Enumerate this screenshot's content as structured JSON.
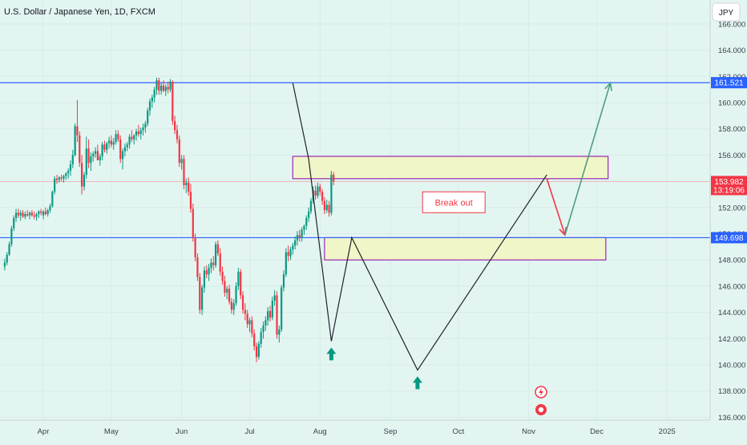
{
  "header": {
    "title": "U.S. Dollar / Japanese Yen, 1D, FXCM"
  },
  "currency_button": {
    "label": "JPY"
  },
  "chart_data": {
    "type": "candlestick",
    "title": "U.S. Dollar / Japanese Yen, 1D, FXCM",
    "y_ticks": [
      "166.000",
      "164.000",
      "162.000",
      "160.000",
      "158.000",
      "156.000",
      "154.000",
      "152.000",
      "150.000",
      "148.000",
      "146.000",
      "144.000",
      "142.000",
      "140.000",
      "138.000",
      "136.000"
    ],
    "ylim": [
      135.3,
      167.3
    ],
    "x_ticks": [
      {
        "label": "Apr",
        "day": 0
      },
      {
        "label": "May",
        "day": 30
      },
      {
        "label": "Jun",
        "day": 61
      },
      {
        "label": "Jul",
        "day": 91
      },
      {
        "label": "Aug",
        "day": 122
      },
      {
        "label": "Sep",
        "day": 153
      },
      {
        "label": "Oct",
        "day": 183
      },
      {
        "label": "Nov",
        "day": 214
      },
      {
        "label": "Dec",
        "day": 244
      },
      {
        "label": "2025",
        "day": 275
      }
    ],
    "price_tags": [
      {
        "label": "161.521",
        "value": 161.521,
        "color": "#2962ff"
      },
      {
        "label": "153.982",
        "sublabel": "13:19:06",
        "value": 153.982,
        "color": "#f23645"
      },
      {
        "label": "149.698",
        "value": 149.698,
        "color": "#2962ff"
      }
    ],
    "levels": [
      {
        "value": 161.521,
        "color": "#2962ff"
      },
      {
        "value": 149.698,
        "color": "#2962ff"
      },
      {
        "value": 153.982,
        "color": "#f4a3a8"
      }
    ],
    "zones": [
      {
        "x_start": 110,
        "x_end": 249,
        "y_low": 154.2,
        "y_high": 155.9
      },
      {
        "x_start": 124,
        "x_end": 248,
        "y_low": 148.0,
        "y_high": 149.7
      }
    ],
    "pattern_line": [
      [
        110,
        161.5
      ],
      [
        117,
        155.7
      ],
      [
        127,
        141.8
      ],
      [
        136,
        149.7
      ],
      [
        165,
        139.6
      ],
      [
        222,
        154.5
      ]
    ],
    "projection_red": [
      [
        222,
        154.2
      ],
      [
        230,
        149.9
      ]
    ],
    "projection_green": [
      [
        230,
        149.9
      ],
      [
        250,
        161.5
      ]
    ],
    "annotation": {
      "text": "Break out",
      "day": 181,
      "value": 152.4
    },
    "up_arrows": [
      {
        "day": 127,
        "value": 141.2
      },
      {
        "day": 165,
        "value": 139.0
      }
    ],
    "candles_ohlc": [
      [
        -17,
        147.5,
        148.1,
        147.2,
        147.8
      ],
      [
        -16,
        147.8,
        148.6,
        147.6,
        148.4
      ],
      [
        -15,
        148.4,
        149.4,
        148.3,
        149.2
      ],
      [
        -14,
        149.2,
        150.6,
        149.0,
        150.4
      ],
      [
        -13,
        150.4,
        151.4,
        150.2,
        151.2
      ],
      [
        -12,
        151.2,
        151.9,
        150.9,
        151.6
      ],
      [
        -11,
        151.6,
        151.9,
        151.2,
        151.4
      ],
      [
        -10,
        151.4,
        151.8,
        151.0,
        151.6
      ],
      [
        -9,
        151.6,
        151.8,
        151.2,
        151.3
      ],
      [
        -8,
        151.3,
        151.7,
        151.1,
        151.5
      ],
      [
        -7,
        151.5,
        151.8,
        151.3,
        151.4
      ],
      [
        -6,
        151.4,
        151.7,
        151.1,
        151.6
      ],
      [
        -5,
        151.6,
        151.8,
        151.3,
        151.4
      ],
      [
        -4,
        151.4,
        151.7,
        151.1,
        151.3
      ],
      [
        -3,
        151.3,
        151.6,
        151.0,
        151.5
      ],
      [
        -2,
        151.5,
        151.8,
        151.2,
        151.7
      ],
      [
        -1,
        151.7,
        151.9,
        151.4,
        151.6
      ],
      [
        0,
        151.4,
        151.8,
        151.1,
        151.7
      ],
      [
        1,
        151.7,
        152.0,
        151.4,
        151.5
      ],
      [
        2,
        151.5,
        151.9,
        151.3,
        151.8
      ],
      [
        3,
        151.8,
        152.3,
        151.6,
        152.1
      ],
      [
        4,
        152.1,
        153.3,
        152.0,
        153.2
      ],
      [
        5,
        153.2,
        154.4,
        153.0,
        154.2
      ],
      [
        6,
        154.2,
        154.5,
        153.8,
        154.1
      ],
      [
        7,
        154.1,
        154.4,
        153.9,
        154.3
      ],
      [
        8,
        154.3,
        154.5,
        154.0,
        154.2
      ],
      [
        9,
        154.2,
        154.5,
        153.9,
        154.4
      ],
      [
        10,
        154.4,
        154.7,
        154.1,
        154.6
      ],
      [
        11,
        154.6,
        155.0,
        154.2,
        154.8
      ],
      [
        12,
        154.8,
        155.6,
        154.4,
        155.3
      ],
      [
        13,
        155.3,
        156.4,
        155.0,
        156.0
      ],
      [
        14,
        156.0,
        158.4,
        155.9,
        158.2
      ],
      [
        15,
        158.2,
        160.2,
        157.0,
        157.5
      ],
      [
        16,
        157.5,
        157.8,
        155.1,
        155.4
      ],
      [
        17,
        155.4,
        156.0,
        153.0,
        153.6
      ],
      [
        18,
        153.6,
        154.7,
        153.3,
        154.5
      ],
      [
        19,
        154.5,
        157.4,
        154.2,
        156.5
      ],
      [
        20,
        156.5,
        157.2,
        155.0,
        155.4
      ],
      [
        21,
        155.4,
        156.2,
        154.8,
        155.9
      ],
      [
        22,
        155.9,
        156.3,
        155.5,
        156.1
      ],
      [
        23,
        156.1,
        156.6,
        155.8,
        156.3
      ],
      [
        24,
        156.3,
        156.8,
        155.9,
        155.6
      ],
      [
        25,
        155.6,
        156.1,
        155.2,
        155.9
      ],
      [
        26,
        155.9,
        157.0,
        155.6,
        156.8
      ],
      [
        27,
        156.8,
        157.1,
        156.2,
        156.4
      ],
      [
        28,
        156.4,
        157.0,
        156.1,
        156.9
      ],
      [
        29,
        156.9,
        157.4,
        156.5,
        157.1
      ],
      [
        30,
        157.1,
        157.5,
        156.6,
        156.8
      ],
      [
        31,
        156.8,
        157.3,
        156.4,
        157.0
      ],
      [
        32,
        157.0,
        157.9,
        156.8,
        157.6
      ],
      [
        33,
        157.6,
        157.9,
        157.0,
        157.2
      ],
      [
        34,
        157.2,
        157.5,
        155.4,
        155.7
      ],
      [
        35,
        155.7,
        156.5,
        154.9,
        156.3
      ],
      [
        36,
        156.3,
        156.9,
        155.9,
        156.6
      ],
      [
        37,
        156.6,
        157.0,
        156.3,
        156.8
      ],
      [
        38,
        156.8,
        157.6,
        156.5,
        157.4
      ],
      [
        39,
        157.4,
        157.9,
        157.0,
        157.2
      ],
      [
        40,
        157.2,
        157.6,
        156.8,
        157.5
      ],
      [
        41,
        157.5,
        158.0,
        157.1,
        157.8
      ],
      [
        42,
        157.8,
        158.3,
        157.4,
        157.6
      ],
      [
        43,
        157.6,
        158.1,
        157.2,
        157.9
      ],
      [
        44,
        157.9,
        158.4,
        157.5,
        158.1
      ],
      [
        45,
        158.1,
        158.6,
        157.7,
        158.4
      ],
      [
        46,
        158.4,
        159.6,
        158.2,
        159.4
      ],
      [
        47,
        159.4,
        160.3,
        159.0,
        160.1
      ],
      [
        48,
        160.1,
        160.6,
        159.6,
        160.4
      ],
      [
        49,
        160.4,
        161.2,
        160.0,
        161.0
      ],
      [
        50,
        161.0,
        161.9,
        160.6,
        161.7
      ],
      [
        51,
        161.7,
        161.9,
        160.6,
        160.9
      ],
      [
        52,
        160.9,
        161.5,
        160.6,
        161.3
      ],
      [
        53,
        161.3,
        161.7,
        160.8,
        160.9
      ],
      [
        54,
        160.9,
        161.4,
        160.5,
        161.2
      ],
      [
        55,
        161.2,
        161.6,
        160.7,
        161.0
      ],
      [
        56,
        161.0,
        161.8,
        160.8,
        161.6
      ],
      [
        57,
        161.6,
        161.7,
        158.3,
        158.6
      ],
      [
        58,
        158.6,
        159.0,
        157.6,
        157.9
      ],
      [
        59,
        157.9,
        158.3,
        156.9,
        157.2
      ],
      [
        60,
        157.2,
        157.5,
        155.1,
        155.4
      ],
      [
        61,
        155.4,
        156.0,
        154.9,
        155.7
      ],
      [
        62,
        155.7,
        156.0,
        153.4,
        153.7
      ],
      [
        63,
        153.7,
        154.2,
        153.1,
        153.9
      ],
      [
        64,
        153.9,
        154.3,
        152.9,
        153.2
      ],
      [
        65,
        153.2,
        153.8,
        151.6,
        151.9
      ],
      [
        66,
        151.9,
        152.3,
        149.4,
        149.7
      ],
      [
        67,
        149.7,
        150.0,
        147.9,
        148.2
      ],
      [
        68,
        148.2,
        148.5,
        146.4,
        146.7
      ],
      [
        69,
        146.7,
        147.0,
        143.9,
        144.2
      ],
      [
        70,
        144.2,
        146.1,
        143.8,
        145.9
      ],
      [
        71,
        145.9,
        147.5,
        145.5,
        147.2
      ],
      [
        72,
        147.2,
        147.6,
        146.6,
        146.9
      ],
      [
        73,
        146.9,
        147.7,
        146.4,
        147.4
      ],
      [
        74,
        147.4,
        148.1,
        147.0,
        147.8
      ],
      [
        75,
        147.8,
        148.3,
        147.2,
        147.6
      ],
      [
        76,
        147.6,
        149.4,
        147.4,
        149.2
      ],
      [
        77,
        149.2,
        149.5,
        148.3,
        148.5
      ],
      [
        78,
        148.5,
        148.9,
        146.8,
        147.1
      ],
      [
        79,
        147.1,
        147.5,
        146.1,
        146.4
      ],
      [
        80,
        146.4,
        146.8,
        145.2,
        145.5
      ],
      [
        81,
        145.5,
        146.0,
        145.0,
        145.8
      ],
      [
        82,
        145.8,
        146.1,
        144.6,
        144.8
      ],
      [
        83,
        144.8,
        145.1,
        143.9,
        144.2
      ],
      [
        84,
        144.2,
        145.0,
        143.8,
        144.7
      ],
      [
        85,
        144.7,
        146.3,
        144.5,
        146.0
      ],
      [
        86,
        146.0,
        147.4,
        145.7,
        147.1
      ],
      [
        87,
        147.1,
        147.3,
        145.0,
        145.3
      ],
      [
        88,
        145.3,
        145.6,
        143.9,
        144.2
      ],
      [
        89,
        144.2,
        144.7,
        143.4,
        143.9
      ],
      [
        90,
        143.9,
        144.2,
        142.8,
        143.1
      ],
      [
        91,
        143.1,
        143.6,
        142.5,
        143.4
      ],
      [
        92,
        143.4,
        143.7,
        142.1,
        142.4
      ],
      [
        93,
        142.4,
        142.7,
        141.1,
        141.4
      ],
      [
        94,
        141.4,
        141.7,
        140.2,
        140.6
      ],
      [
        95,
        140.6,
        141.8,
        140.4,
        141.6
      ],
      [
        96,
        141.6,
        142.8,
        141.3,
        142.5
      ],
      [
        97,
        142.5,
        143.3,
        142.0,
        143.0
      ],
      [
        98,
        143.0,
        143.7,
        142.6,
        143.4
      ],
      [
        99,
        143.4,
        144.4,
        143.0,
        144.1
      ],
      [
        100,
        144.1,
        144.5,
        143.3,
        143.6
      ],
      [
        101,
        143.6,
        145.2,
        143.4,
        144.9
      ],
      [
        102,
        144.9,
        145.7,
        144.5,
        145.3
      ],
      [
        103,
        145.3,
        145.6,
        142.0,
        142.3
      ],
      [
        104,
        142.3,
        143.0,
        141.7,
        142.7
      ],
      [
        105,
        142.7,
        146.1,
        142.5,
        145.9
      ],
      [
        106,
        145.9,
        147.2,
        145.6,
        146.9
      ],
      [
        107,
        146.9,
        148.9,
        146.7,
        148.6
      ],
      [
        108,
        148.6,
        149.1,
        147.9,
        148.3
      ],
      [
        109,
        148.3,
        149.0,
        148.0,
        148.8
      ],
      [
        110,
        148.8,
        149.3,
        148.4,
        149.1
      ],
      [
        111,
        149.1,
        149.8,
        148.8,
        149.5
      ],
      [
        112,
        149.5,
        150.2,
        149.1,
        149.9
      ],
      [
        113,
        149.9,
        150.3,
        149.4,
        149.7
      ],
      [
        114,
        149.7,
        150.5,
        149.4,
        150.3
      ],
      [
        115,
        150.3,
        150.7,
        149.9,
        150.6
      ],
      [
        116,
        150.6,
        151.4,
        150.3,
        151.2
      ],
      [
        117,
        151.2,
        152.0,
        150.9,
        151.7
      ],
      [
        118,
        151.7,
        152.7,
        151.5,
        152.5
      ],
      [
        119,
        152.5,
        153.6,
        152.3,
        153.3
      ],
      [
        120,
        153.3,
        153.7,
        152.6,
        152.9
      ],
      [
        121,
        152.9,
        153.9,
        152.7,
        153.6
      ],
      [
        122,
        153.6,
        153.8,
        152.9,
        153.2
      ],
      [
        123,
        153.2,
        153.4,
        152.2,
        152.5
      ],
      [
        124,
        152.5,
        152.8,
        151.5,
        151.8
      ],
      [
        125,
        151.8,
        152.6,
        151.6,
        152.2
      ],
      [
        126,
        152.2,
        152.5,
        151.3,
        151.6
      ],
      [
        127,
        151.6,
        154.8,
        151.4,
        154.5
      ],
      [
        128,
        154.5,
        154.7,
        153.7,
        154.0
      ]
    ]
  }
}
